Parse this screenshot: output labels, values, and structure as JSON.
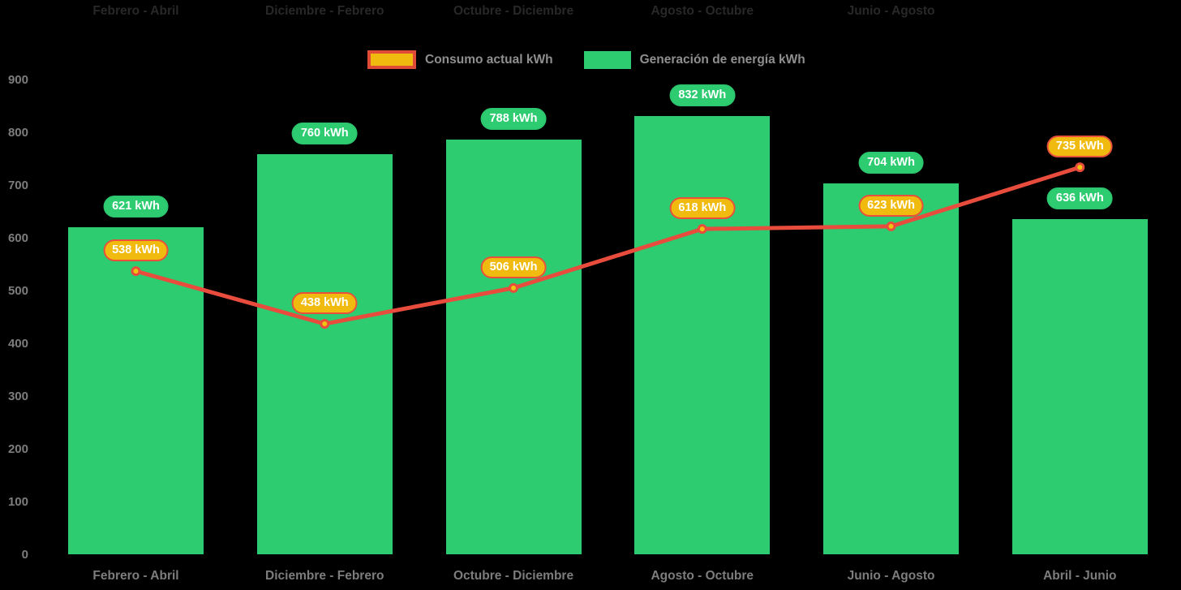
{
  "chart_data": {
    "type": "bar",
    "title": "",
    "categories": [
      "Febrero - Abril",
      "Diciembre - Febrero",
      "Octubre - Diciembre",
      "Agosto - Octubre",
      "Junio - Agosto",
      "Abril - Junio"
    ],
    "series": [
      {
        "name": "Consumo actual kWh",
        "type": "line",
        "values": [
          538,
          438,
          506,
          618,
          623,
          735
        ],
        "color": "#e74c3c",
        "marker_color": "#f1c40f",
        "label_bg": "#f0bb0e",
        "label_border": "#e8503c"
      },
      {
        "name": "Generación de energía kWh",
        "type": "bar",
        "values": [
          621,
          760,
          788,
          832,
          704,
          636
        ],
        "color": "#2ecc71",
        "label_bg": "#2ecc71",
        "label_border": "#2cc76e"
      }
    ],
    "value_suffix": " kWh",
    "ylim": [
      0,
      900
    ],
    "y_ticks": [
      0,
      100,
      200,
      300,
      400,
      500,
      600,
      700,
      800,
      900
    ],
    "grid": false,
    "legend_position": "top",
    "background": "#000000",
    "axis_text_color": "#7d7d7d",
    "legend_text_color": "#8f8f8f",
    "legend_swatch_border": "#e04b38",
    "data_label_text_color": "#ffffff",
    "top_label_color": "#282828",
    "top_ghost_labels": [
      "Febrero - Abril",
      "Diciembre - Febrero",
      "Octubre - Diciembre",
      "Agosto - Octubre",
      "Junio - Agosto"
    ]
  }
}
